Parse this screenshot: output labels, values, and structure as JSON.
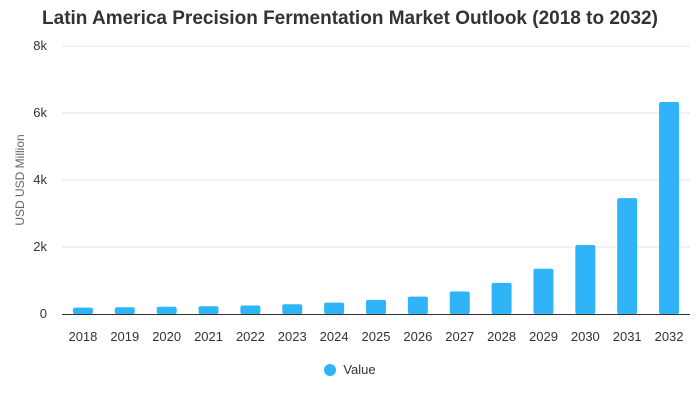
{
  "chart_data": {
    "type": "bar",
    "title": "Latin America Precision Fermentation Market Outlook (2018 to 2032)",
    "xlabel": "",
    "ylabel": "USD USD Million",
    "categories": [
      "2018",
      "2019",
      "2020",
      "2021",
      "2022",
      "2023",
      "2024",
      "2025",
      "2026",
      "2027",
      "2028",
      "2029",
      "2030",
      "2031",
      "2032"
    ],
    "series": [
      {
        "name": "Value",
        "values": [
          190,
          200,
          215,
          230,
          255,
          290,
          340,
          420,
          520,
          670,
          930,
          1350,
          2060,
          3460,
          6330
        ]
      }
    ],
    "ylim": [
      0,
      8000
    ],
    "yticks": [
      0,
      2000,
      4000,
      6000,
      8000
    ],
    "ytick_labels": [
      "0",
      "2k",
      "4k",
      "6k",
      "8k"
    ],
    "grid": true,
    "legend_position": "bottom",
    "colors": {
      "bar": "#2eb4f7",
      "grid": "#e6e6e6",
      "axis": "#333333",
      "tick_text": "#333333"
    }
  }
}
